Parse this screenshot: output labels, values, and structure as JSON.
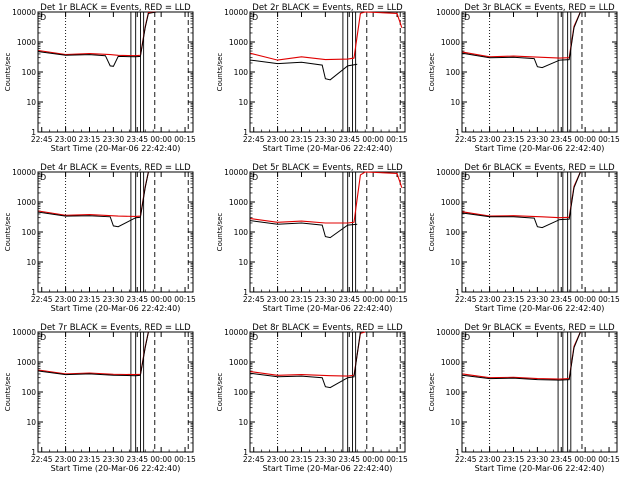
{
  "figure": {
    "x_axis_label": "Start Time (20-Mar-06 22:42:40)",
    "y_axis_label": "Counts/sec"
  },
  "colors": {
    "events": "#000000",
    "lld": "#e00000",
    "axes": "#000000"
  },
  "chart_data": [
    {
      "type": "line",
      "title": "Det 1r BLACK = Events, RED = LLD",
      "corner_label": "D",
      "xlim": [
        "22:42:40",
        "00:20:00"
      ],
      "ylim": [
        1,
        10000
      ],
      "yscale": "log",
      "x_ticks": [
        "22:45",
        "23:00",
        "23:15",
        "23:30",
        "23:45",
        "00:00",
        "00:15"
      ],
      "y_ticks": [
        "1",
        "10",
        "100",
        "1000",
        "10000"
      ],
      "events": {
        "name": "Events",
        "t": [
          "22:43",
          "23:00",
          "23:15",
          "23:25",
          "23:28",
          "23:30",
          "23:33",
          "23:44",
          "23:47",
          "23:50",
          "23:52",
          "23:57"
        ],
        "v": [
          480,
          360,
          380,
          350,
          160,
          155,
          330,
          320,
          330,
          3000,
          9000,
          10000
        ]
      },
      "lld": {
        "name": "LLD",
        "t": [
          "22:43",
          "23:00",
          "23:15",
          "23:28",
          "23:33",
          "23:44",
          "23:47",
          "23:50",
          "23:52",
          "23:57"
        ],
        "v": [
          520,
          380,
          410,
          380,
          360,
          350,
          360,
          3200,
          9500,
          10000
        ]
      },
      "solid_markers": [
        "23:41",
        "23:44",
        "23:47",
        "23:49"
      ],
      "dashed_markers": [
        "23:56",
        "00:17"
      ],
      "dotted_markers": [
        "23:00"
      ]
    },
    {
      "type": "line",
      "title": "Det 2r BLACK = Events, RED = LLD",
      "corner_label": "D",
      "xlim": [
        "22:42:40",
        "00:20:00"
      ],
      "ylim": [
        1,
        10000
      ],
      "yscale": "log",
      "x_ticks": [
        "22:45",
        "23:00",
        "23:15",
        "23:30",
        "23:45",
        "00:00",
        "00:15"
      ],
      "y_ticks": [
        "1",
        "10",
        "100",
        "1000",
        "10000"
      ],
      "events": {
        "name": "Events",
        "t": [
          "22:43",
          "23:00",
          "23:15",
          "23:28",
          "23:30",
          "23:33",
          "23:44",
          "23:50"
        ],
        "v": [
          250,
          190,
          210,
          170,
          60,
          55,
          160,
          180
        ]
      },
      "lld": {
        "name": "LLD",
        "t": [
          "22:43",
          "23:00",
          "23:15",
          "23:30",
          "23:44",
          "23:48",
          "23:52",
          "23:55",
          "00:15",
          "00:18"
        ],
        "v": [
          420,
          250,
          320,
          260,
          270,
          290,
          9000,
          10000,
          9000,
          3000
        ]
      },
      "solid_markers": [
        "23:41",
        "23:44",
        "23:47",
        "23:49"
      ],
      "dashed_markers": [
        "23:56",
        "00:17"
      ],
      "dotted_markers": [
        "23:00"
      ]
    },
    {
      "type": "line",
      "title": "Det 3r BLACK = Events, RED = LLD",
      "corner_label": "D",
      "xlim": [
        "22:42:40",
        "00:20:00"
      ],
      "ylim": [
        1,
        10000
      ],
      "yscale": "log",
      "x_ticks": [
        "22:45",
        "23:00",
        "23:15",
        "23:30",
        "23:45",
        "00:00",
        "00:15"
      ],
      "y_ticks": [
        "1",
        "10",
        "100",
        "1000",
        "10000"
      ],
      "events": {
        "name": "Events",
        "t": [
          "22:43",
          "23:00",
          "23:15",
          "23:28",
          "23:30",
          "23:33",
          "23:44",
          "23:50",
          "23:53",
          "23:57"
        ],
        "v": [
          420,
          300,
          310,
          280,
          150,
          140,
          250,
          260,
          3000,
          10000
        ]
      },
      "lld": {
        "name": "LLD",
        "t": [
          "22:43",
          "23:00",
          "23:15",
          "23:33",
          "23:44",
          "23:50",
          "23:53",
          "23:57"
        ],
        "v": [
          460,
          320,
          340,
          310,
          290,
          300,
          3300,
          10000
        ]
      },
      "solid_markers": [
        "23:43",
        "23:46",
        "23:49",
        "23:51"
      ],
      "dashed_markers": [
        "23:58"
      ],
      "dotted_markers": [
        "23:00"
      ]
    },
    {
      "type": "line",
      "title": "Det 4r BLACK = Events, RED = LLD",
      "corner_label": "D",
      "xlim": [
        "22:42:40",
        "00:20:00"
      ],
      "ylim": [
        1,
        10000
      ],
      "yscale": "log",
      "x_ticks": [
        "22:45",
        "23:00",
        "23:15",
        "23:30",
        "23:45",
        "00:00",
        "00:15"
      ],
      "y_ticks": [
        "1",
        "10",
        "100",
        "1000",
        "10000"
      ],
      "events": {
        "name": "Events",
        "t": [
          "22:43",
          "23:00",
          "23:15",
          "23:28",
          "23:30",
          "23:33",
          "23:44",
          "23:47",
          "23:50",
          "23:52"
        ],
        "v": [
          460,
          340,
          350,
          320,
          160,
          150,
          300,
          310,
          3000,
          10000
        ]
      },
      "lld": {
        "name": "LLD",
        "t": [
          "22:43",
          "23:00",
          "23:15",
          "23:33",
          "23:44",
          "23:47",
          "23:50",
          "23:52"
        ],
        "v": [
          500,
          360,
          380,
          340,
          330,
          340,
          3200,
          10000
        ]
      },
      "solid_markers": [
        "23:41",
        "23:44",
        "23:47",
        "23:49"
      ],
      "dashed_markers": [
        "23:56",
        "00:17"
      ],
      "dotted_markers": [
        "23:00"
      ]
    },
    {
      "type": "line",
      "title": "Det 5r BLACK = Events, RED = LLD",
      "corner_label": "D",
      "xlim": [
        "22:42:40",
        "00:20:00"
      ],
      "ylim": [
        1,
        10000
      ],
      "yscale": "log",
      "x_ticks": [
        "22:45",
        "23:00",
        "23:15",
        "23:30",
        "23:45",
        "00:00",
        "00:15"
      ],
      "y_ticks": [
        "1",
        "10",
        "100",
        "1000",
        "10000"
      ],
      "events": {
        "name": "Events",
        "t": [
          "22:43",
          "23:00",
          "23:15",
          "23:28",
          "23:30",
          "23:33",
          "23:44",
          "23:50"
        ],
        "v": [
          240,
          180,
          200,
          170,
          70,
          65,
          170,
          180
        ]
      },
      "lld": {
        "name": "LLD",
        "t": [
          "22:43",
          "23:00",
          "23:15",
          "23:30",
          "23:44",
          "23:48",
          "23:52",
          "23:55",
          "00:15",
          "00:18"
        ],
        "v": [
          280,
          210,
          230,
          200,
          200,
          210,
          8000,
          10000,
          9000,
          3000
        ]
      },
      "solid_markers": [
        "23:41",
        "23:44",
        "23:47",
        "23:49"
      ],
      "dashed_markers": [
        "23:56",
        "00:17"
      ],
      "dotted_markers": [
        "23:00"
      ]
    },
    {
      "type": "line",
      "title": "Det 6r BLACK = Events, RED = LLD",
      "corner_label": "D",
      "xlim": [
        "22:42:40",
        "00:20:00"
      ],
      "ylim": [
        1,
        10000
      ],
      "yscale": "log",
      "x_ticks": [
        "22:45",
        "23:00",
        "23:15",
        "23:30",
        "23:45",
        "00:00",
        "00:15"
      ],
      "y_ticks": [
        "1",
        "10",
        "100",
        "1000",
        "10000"
      ],
      "events": {
        "name": "Events",
        "t": [
          "22:43",
          "23:00",
          "23:15",
          "23:28",
          "23:30",
          "23:33",
          "23:44",
          "23:50",
          "23:53",
          "23:57"
        ],
        "v": [
          430,
          320,
          320,
          290,
          150,
          140,
          260,
          270,
          3000,
          10000
        ]
      },
      "lld": {
        "name": "LLD",
        "t": [
          "22:43",
          "23:00",
          "23:15",
          "23:33",
          "23:44",
          "23:50",
          "23:53",
          "23:57"
        ],
        "v": [
          470,
          340,
          350,
          320,
          300,
          310,
          3300,
          10000
        ]
      },
      "solid_markers": [
        "23:43",
        "23:46",
        "23:49",
        "23:51"
      ],
      "dashed_markers": [
        "23:58"
      ],
      "dotted_markers": [
        "23:00"
      ]
    },
    {
      "type": "line",
      "title": "Det 7r BLACK = Events, RED = LLD",
      "corner_label": "D",
      "xlim": [
        "22:42:40",
        "00:20:00"
      ],
      "ylim": [
        1,
        10000
      ],
      "yscale": "log",
      "x_ticks": [
        "22:45",
        "23:00",
        "23:15",
        "23:30",
        "23:45",
        "00:00",
        "00:15"
      ],
      "y_ticks": [
        "1",
        "10",
        "100",
        "1000",
        "10000"
      ],
      "events": {
        "name": "Events",
        "t": [
          "22:43",
          "23:00",
          "23:15",
          "23:30",
          "23:44",
          "23:47",
          "23:50",
          "23:52"
        ],
        "v": [
          500,
          380,
          400,
          360,
          350,
          360,
          3000,
          10000
        ]
      },
      "lld": {
        "name": "LLD",
        "t": [
          "22:43",
          "23:00",
          "23:15",
          "23:30",
          "23:44",
          "23:47",
          "23:50",
          "23:52"
        ],
        "v": [
          540,
          400,
          430,
          390,
          380,
          390,
          3200,
          10000
        ]
      },
      "solid_markers": [
        "23:41",
        "23:44",
        "23:47",
        "23:49"
      ],
      "dashed_markers": [
        "23:56",
        "00:17"
      ],
      "dotted_markers": [
        "23:00"
      ]
    },
    {
      "type": "line",
      "title": "Det 8r BLACK = Events, RED = LLD",
      "corner_label": "D",
      "xlim": [
        "22:42:40",
        "00:20:00"
      ],
      "ylim": [
        1,
        10000
      ],
      "yscale": "log",
      "x_ticks": [
        "22:45",
        "23:00",
        "23:15",
        "23:30",
        "23:45",
        "00:00",
        "00:15"
      ],
      "y_ticks": [
        "1",
        "10",
        "100",
        "1000",
        "10000"
      ],
      "events": {
        "name": "Events",
        "t": [
          "22:43",
          "23:00",
          "23:15",
          "23:28",
          "23:30",
          "23:33",
          "23:44",
          "23:48",
          "23:52"
        ],
        "v": [
          420,
          320,
          340,
          300,
          150,
          140,
          300,
          320,
          10000
        ]
      },
      "lld": {
        "name": "LLD",
        "t": [
          "22:43",
          "23:00",
          "23:15",
          "23:33",
          "23:44",
          "23:48",
          "23:52",
          "23:55"
        ],
        "v": [
          480,
          360,
          380,
          350,
          340,
          360,
          9000,
          10000
        ]
      },
      "solid_markers": [
        "23:41",
        "23:44",
        "23:47",
        "23:49"
      ],
      "dashed_markers": [
        "23:56",
        "00:17"
      ],
      "dotted_markers": [
        "23:00"
      ]
    },
    {
      "type": "line",
      "title": "Det 9r BLACK = Events, RED = LLD",
      "corner_label": "D",
      "xlim": [
        "22:42:40",
        "00:20:00"
      ],
      "ylim": [
        1,
        10000
      ],
      "yscale": "log",
      "x_ticks": [
        "22:45",
        "23:00",
        "23:15",
        "23:30",
        "23:45",
        "00:00",
        "00:15"
      ],
      "y_ticks": [
        "1",
        "10",
        "100",
        "1000",
        "10000"
      ],
      "events": {
        "name": "Events",
        "t": [
          "22:43",
          "23:00",
          "23:15",
          "23:30",
          "23:44",
          "23:50",
          "23:53",
          "23:57"
        ],
        "v": [
          360,
          280,
          290,
          260,
          250,
          260,
          3000,
          10000
        ]
      },
      "lld": {
        "name": "LLD",
        "t": [
          "22:43",
          "23:00",
          "23:15",
          "23:30",
          "23:44",
          "23:50",
          "23:53",
          "23:57"
        ],
        "v": [
          400,
          300,
          310,
          280,
          270,
          280,
          3300,
          10000
        ]
      },
      "solid_markers": [
        "23:43",
        "23:46",
        "23:49",
        "23:51"
      ],
      "dashed_markers": [
        "23:58"
      ],
      "dotted_markers": [
        "23:00"
      ]
    }
  ]
}
